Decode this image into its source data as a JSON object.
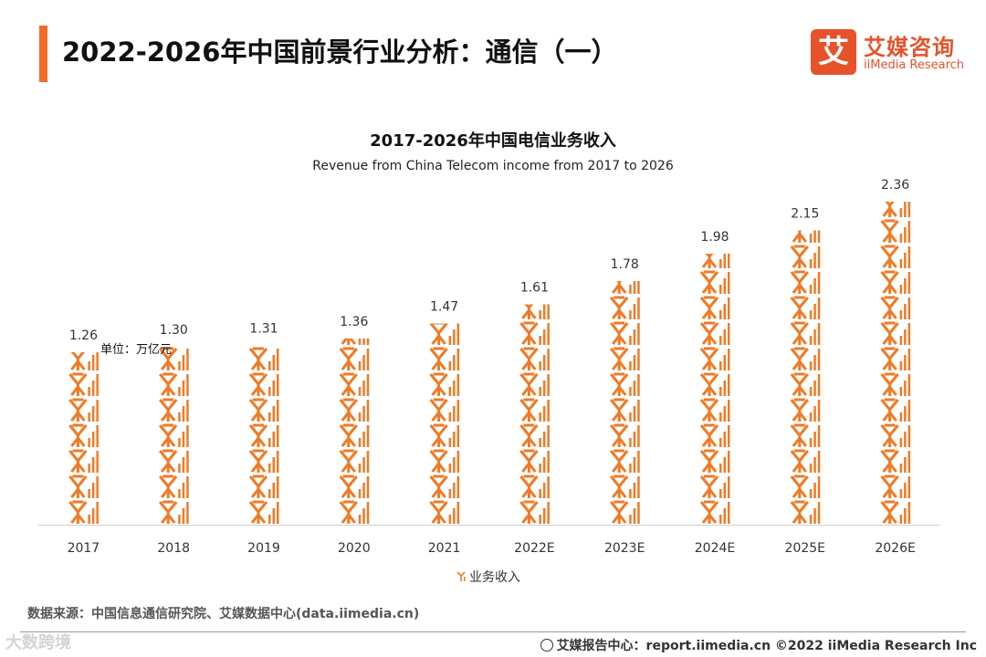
{
  "header": {
    "title": "2022-2026年中国前景行业分析：通信（一）",
    "accent_color": "#f26a2c"
  },
  "logo": {
    "mark": "艾",
    "cn": "艾媒咨询",
    "en": "iiMedia Research",
    "color": "#e8522a"
  },
  "chart_data": {
    "type": "bar",
    "title": "2017-2026年中国电信业务收入",
    "subtitle": "Revenue from China Telecom income from 2017 to 2026",
    "unit_label": "单位：万亿元",
    "categories": [
      "2017",
      "2018",
      "2019",
      "2020",
      "2021",
      "2022E",
      "2023E",
      "2024E",
      "2025E",
      "2026E"
    ],
    "series": [
      {
        "name": "业务收入",
        "values": [
          1.26,
          1.3,
          1.31,
          1.36,
          1.47,
          1.61,
          1.78,
          1.98,
          2.15,
          2.36
        ],
        "labels": [
          "1.26",
          "1.30",
          "1.31",
          "1.36",
          "1.47",
          "1.61",
          "1.78",
          "1.98",
          "2.15",
          "2.36"
        ],
        "color": "#f07a25"
      }
    ],
    "ylim": [
      0,
      2.36
    ],
    "grid": false,
    "legend": "bottom-center",
    "xlabel": "",
    "ylabel": ""
  },
  "legend": {
    "label": "业务收入"
  },
  "footer": {
    "source": "数据来源：中国信息通信研究院、艾媒数据中心(data.iimedia.cn)",
    "right": "艾媒报告中心：report.iimedia.cn   ©2022  iiMedia Research  Inc",
    "watermark": "大数跨境"
  }
}
